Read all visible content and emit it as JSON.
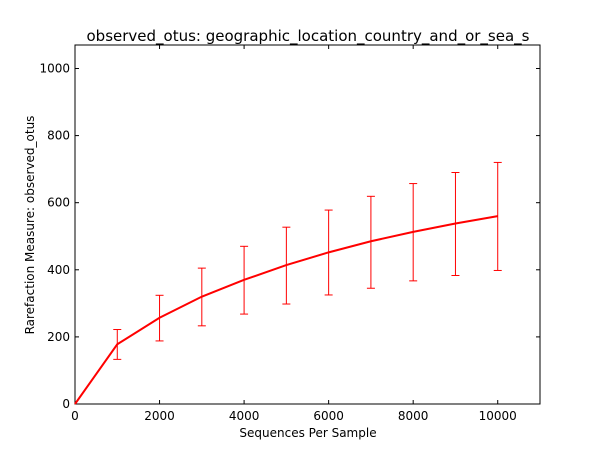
{
  "chart_data": {
    "type": "line",
    "title": "observed_otus: geographic_location_country_and_or_sea_s",
    "xlabel": "Sequences Per Sample",
    "ylabel": "Rarefaction Measure: observed_otus",
    "xlim": [
      0,
      11000
    ],
    "ylim": [
      0,
      1070
    ],
    "xticks": [
      0,
      2000,
      4000,
      6000,
      8000,
      10000
    ],
    "yticks": [
      0,
      200,
      400,
      600,
      800,
      1000
    ],
    "grid": false,
    "series": [
      {
        "color": "#ff0000",
        "x": [
          0,
          1000,
          2000,
          3000,
          4000,
          5000,
          6000,
          7000,
          8000,
          9000,
          10000
        ],
        "y": [
          0,
          178,
          257,
          320,
          370,
          414,
          452,
          485,
          513,
          538,
          560
        ],
        "err_low": [
          null,
          133,
          188,
          233,
          268,
          298,
          325,
          345,
          367,
          383,
          398
        ],
        "err_high": [
          null,
          222,
          324,
          405,
          470,
          527,
          578,
          619,
          657,
          690,
          720
        ]
      }
    ]
  }
}
